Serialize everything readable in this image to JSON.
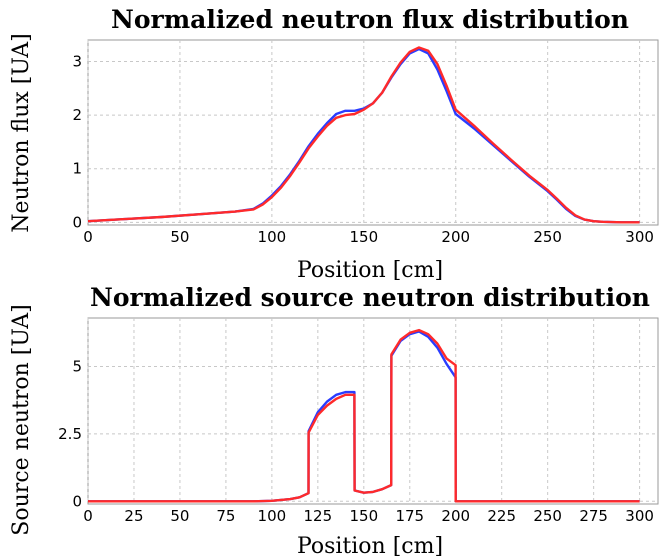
{
  "chart_data": [
    {
      "type": "line",
      "title": "Normalized neutron flux distribution",
      "xlabel": "Position [cm]",
      "ylabel": "Neutron flux [UA]",
      "xlim": [
        0,
        310
      ],
      "ylim": [
        -0.05,
        3.4
      ],
      "xticks": [
        0,
        50,
        100,
        150,
        200,
        250,
        300
      ],
      "yticks": [
        0,
        1,
        2,
        3
      ],
      "ytick_labels": [
        "0",
        "1",
        "2",
        "3"
      ],
      "grid": true,
      "series": [
        {
          "color": "#2a3cff",
          "x": [
            0,
            20,
            40,
            60,
            80,
            90,
            95,
            100,
            105,
            110,
            115,
            120,
            125,
            130,
            135,
            140,
            145,
            150,
            155,
            160,
            165,
            170,
            175,
            180,
            185,
            190,
            195,
            200,
            210,
            220,
            230,
            240,
            250,
            255,
            260,
            265,
            270,
            275,
            280,
            290,
            300
          ],
          "y": [
            0.02,
            0.06,
            0.1,
            0.15,
            0.2,
            0.25,
            0.35,
            0.5,
            0.68,
            0.9,
            1.15,
            1.42,
            1.65,
            1.85,
            2.02,
            2.08,
            2.08,
            2.12,
            2.22,
            2.42,
            2.7,
            2.95,
            3.15,
            3.23,
            3.15,
            2.85,
            2.45,
            2.02,
            1.75,
            1.45,
            1.15,
            0.85,
            0.58,
            0.42,
            0.25,
            0.12,
            0.05,
            0.02,
            0.01,
            0,
            0
          ]
        },
        {
          "color": "#ff2a2a",
          "x": [
            0,
            20,
            40,
            60,
            80,
            90,
            95,
            100,
            105,
            110,
            115,
            120,
            125,
            130,
            135,
            140,
            145,
            150,
            155,
            160,
            165,
            170,
            175,
            180,
            185,
            190,
            195,
            200,
            210,
            220,
            230,
            240,
            250,
            255,
            260,
            265,
            270,
            275,
            280,
            290,
            300
          ],
          "y": [
            0.02,
            0.06,
            0.1,
            0.15,
            0.2,
            0.24,
            0.33,
            0.47,
            0.65,
            0.87,
            1.12,
            1.38,
            1.6,
            1.8,
            1.95,
            2.0,
            2.02,
            2.1,
            2.22,
            2.42,
            2.72,
            2.98,
            3.18,
            3.26,
            3.2,
            2.95,
            2.55,
            2.1,
            1.8,
            1.48,
            1.17,
            0.87,
            0.6,
            0.44,
            0.27,
            0.13,
            0.05,
            0.02,
            0.01,
            0,
            0
          ]
        }
      ]
    },
    {
      "type": "line",
      "title": "Normalized source neutron distribution",
      "xlabel": "Position [cm]",
      "ylabel": "Source neutron [UA]",
      "xlim": [
        0,
        310
      ],
      "ylim": [
        -0.1,
        6.8
      ],
      "xticks": [
        0,
        25,
        50,
        75,
        100,
        125,
        150,
        175,
        200,
        225,
        250,
        275,
        300
      ],
      "yticks": [
        0,
        2.5,
        5
      ],
      "ytick_labels": [
        "0",
        "2.5",
        "5"
      ],
      "grid": true,
      "series": [
        {
          "color": "#2a3cff",
          "x": [
            0,
            90,
            100,
            110,
            115,
            119.9,
            120,
            125,
            130,
            135,
            140,
            144.9,
            145,
            150,
            155,
            160,
            164.9,
            165,
            170,
            175,
            180,
            185,
            190,
            195,
            199.9,
            200,
            300
          ],
          "y": [
            0,
            0,
            0.02,
            0.08,
            0.15,
            0.3,
            2.6,
            3.3,
            3.7,
            3.95,
            4.05,
            4.05,
            0.4,
            0.32,
            0.35,
            0.45,
            0.6,
            5.4,
            5.95,
            6.2,
            6.3,
            6.1,
            5.7,
            5.1,
            4.6,
            0,
            0
          ]
        },
        {
          "color": "#ff2a2a",
          "x": [
            0,
            90,
            100,
            110,
            115,
            119.9,
            120,
            125,
            130,
            135,
            140,
            144.9,
            145,
            150,
            155,
            160,
            164.9,
            165,
            170,
            175,
            180,
            185,
            190,
            195,
            199.9,
            200,
            300
          ],
          "y": [
            0,
            0,
            0.02,
            0.08,
            0.15,
            0.3,
            2.55,
            3.2,
            3.55,
            3.8,
            3.95,
            3.95,
            0.4,
            0.32,
            0.35,
            0.45,
            0.6,
            5.45,
            6.0,
            6.25,
            6.35,
            6.2,
            5.85,
            5.3,
            5.05,
            0,
            0
          ]
        }
      ]
    }
  ]
}
